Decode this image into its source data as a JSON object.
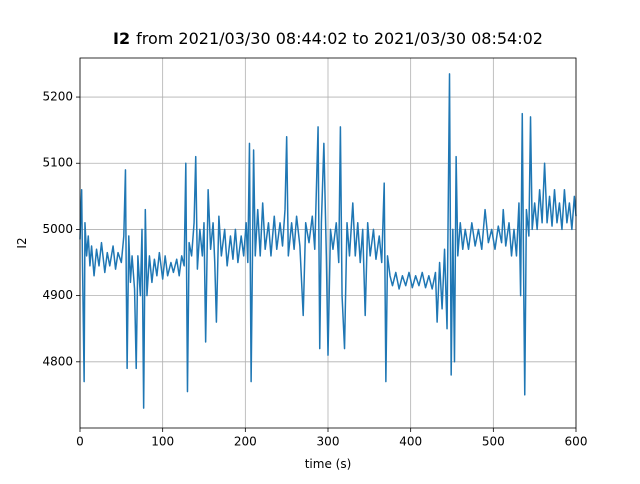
{
  "chart_data": {
    "type": "line",
    "title_variable": "I2",
    "title": "from 2021/03/30 08:44:02 to 2021/03/30 08:54:02",
    "xlabel": "time (s)",
    "ylabel": "I2",
    "color": "#1f77b4",
    "grid": true,
    "xlim": [
      0,
      600
    ],
    "ylim": [
      4700,
      5259
    ],
    "xticks": [
      0,
      100,
      200,
      300,
      400,
      500,
      600
    ],
    "yticks": [
      4800,
      4900,
      5000,
      5100,
      5200
    ],
    "x": [
      0,
      2,
      3,
      5,
      6,
      8,
      10,
      12,
      14,
      17,
      20,
      23,
      26,
      30,
      33,
      36,
      40,
      43,
      46,
      50,
      53,
      55,
      56,
      57,
      59,
      61,
      63,
      66,
      68,
      70,
      73,
      75,
      77,
      79,
      81,
      84,
      87,
      90,
      93,
      96,
      100,
      103,
      106,
      110,
      113,
      117,
      120,
      123,
      126,
      128,
      130,
      132,
      135,
      138,
      140,
      142,
      145,
      148,
      150,
      152,
      155,
      158,
      161,
      163,
      165,
      168,
      171,
      175,
      178,
      182,
      185,
      188,
      191,
      195,
      198,
      201,
      203,
      205,
      207,
      210,
      212,
      215,
      218,
      221,
      224,
      228,
      231,
      235,
      238,
      242,
      245,
      248,
      250,
      252,
      256,
      259,
      262,
      266,
      270,
      273,
      277,
      281,
      284,
      288,
      290,
      292,
      295,
      298,
      300,
      303,
      306,
      310,
      313,
      315,
      317,
      320,
      323,
      326,
      330,
      333,
      336,
      339,
      342,
      345,
      348,
      351,
      355,
      358,
      362,
      365,
      368,
      370,
      372,
      375,
      378,
      382,
      386,
      390,
      394,
      398,
      402,
      406,
      410,
      414,
      418,
      422,
      426,
      430,
      432,
      435,
      438,
      441,
      444,
      447,
      449,
      451,
      453,
      455,
      457,
      460,
      463,
      466,
      470,
      474,
      478,
      482,
      486,
      490,
      494,
      498,
      502,
      506,
      510,
      512,
      515,
      519,
      522,
      525,
      528,
      531,
      533,
      535,
      537,
      538,
      540,
      543,
      545,
      547,
      550,
      553,
      556,
      559,
      562,
      565,
      568,
      571,
      574,
      577,
      580,
      583,
      586,
      589,
      592,
      595,
      598,
      600
    ],
    "values": [
      4985,
      5060,
      4950,
      4770,
      5010,
      4960,
      4990,
      4945,
      4975,
      4930,
      4970,
      4945,
      4980,
      4935,
      4965,
      4945,
      4975,
      4940,
      4965,
      4950,
      4990,
      5090,
      4920,
      4790,
      4990,
      4920,
      4960,
      4910,
      4790,
      4960,
      4900,
      5000,
      4730,
      5030,
      4900,
      4960,
      4920,
      4955,
      4930,
      4965,
      4925,
      4960,
      4930,
      4950,
      4935,
      4955,
      4930,
      4960,
      4945,
      5100,
      4755,
      4980,
      4960,
      5010,
      5110,
      4940,
      5000,
      4960,
      5010,
      4830,
      5060,
      4970,
      5010,
      4950,
      4860,
      5020,
      4960,
      5000,
      4945,
      4990,
      4955,
      5000,
      4950,
      4990,
      4960,
      5010,
      4950,
      5130,
      4770,
      5120,
      4960,
      5030,
      4960,
      5040,
      4970,
      5010,
      4960,
      5020,
      4970,
      5010,
      4975,
      5030,
      5140,
      4960,
      5010,
      4970,
      5020,
      4975,
      4870,
      5010,
      4980,
      5020,
      4970,
      5155,
      4820,
      5010,
      5130,
      4960,
      4810,
      5000,
      4970,
      5010,
      4950,
      5155,
      4900,
      4820,
      5010,
      4960,
      5040,
      4960,
      5010,
      4950,
      5000,
      4870,
      5010,
      4960,
      5000,
      4955,
      4990,
      4950,
      5070,
      4770,
      4960,
      4930,
      4915,
      4935,
      4910,
      4930,
      4915,
      4935,
      4912,
      4930,
      4915,
      4935,
      4912,
      4930,
      4910,
      4935,
      4860,
      4950,
      4880,
      4970,
      4850,
      5235,
      4780,
      5000,
      4800,
      5110,
      4960,
      5010,
      4970,
      5000,
      4970,
      5010,
      4975,
      5000,
      4970,
      5030,
      4980,
      5000,
      4970,
      5005,
      4980,
      5030,
      4975,
      5010,
      4960,
      5000,
      4960,
      5040,
      4900,
      5175,
      4880,
      4750,
      5030,
      4990,
      5170,
      5000,
      5040,
      5000,
      5060,
      5010,
      5100,
      5010,
      5050,
      5005,
      5060,
      5010,
      5040,
      5000,
      5060,
      5010,
      5040,
      5000,
      5050,
      5020
    ]
  }
}
